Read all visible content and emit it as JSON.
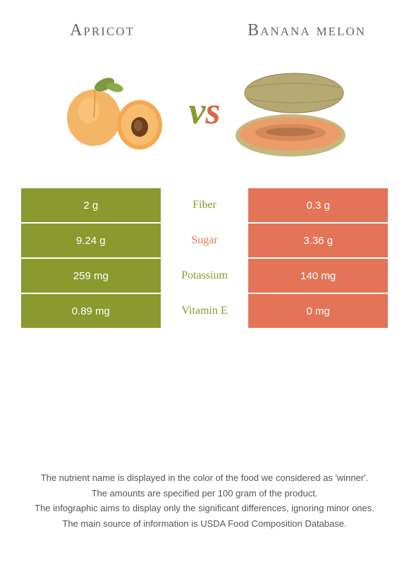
{
  "left": {
    "title": "Apricot",
    "color": "#8a9a2f"
  },
  "right": {
    "title": "Banana melon",
    "color": "#e37458"
  },
  "rows": [
    {
      "label": "Fiber",
      "left": "2 g",
      "right": "0.3 g",
      "winner": "left"
    },
    {
      "label": "Sugar",
      "left": "9.24 g",
      "right": "3.36 g",
      "winner": "right"
    },
    {
      "label": "Potassium",
      "left": "259 mg",
      "right": "140 mg",
      "winner": "left"
    },
    {
      "label": "Vitamin E",
      "left": "0.89 mg",
      "right": "0 mg",
      "winner": "left"
    }
  ],
  "row_border": "#ffffff",
  "label_colors": {
    "left": "#8a9a2f",
    "right": "#e37458"
  },
  "footer": [
    "The nutrient name is displayed in the color of the food we considered as 'winner'.",
    "The amounts are specified per 100 gram of the product.",
    "The infographic aims to display only the significant differences, ignoring minor ones.",
    "The main source of information is USDA Food Composition Database."
  ]
}
